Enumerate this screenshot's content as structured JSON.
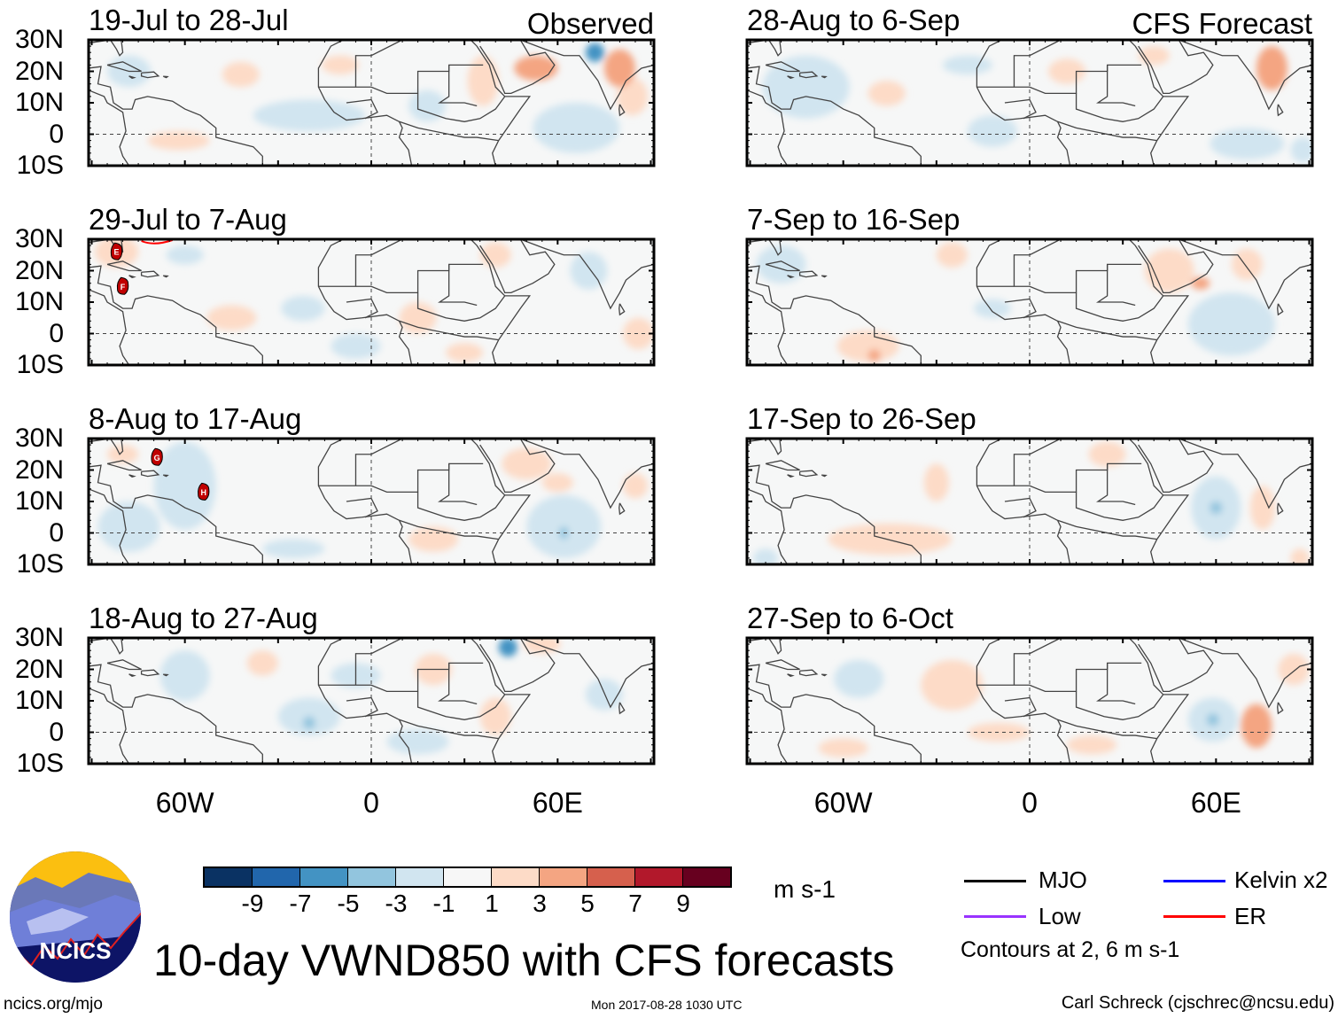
{
  "panels": [
    {
      "title": "19-Jul to 28-Jul",
      "label": "Observed",
      "col": 0,
      "row": 0,
      "features": [
        [
          53,
          21,
          7,
          4,
          5
        ],
        [
          72,
          26,
          3,
          3,
          -5
        ],
        [
          80,
          21,
          5,
          6,
          4
        ],
        [
          66,
          2,
          14,
          8,
          -2
        ],
        [
          -20,
          6,
          18,
          5,
          -2
        ],
        [
          -42,
          19,
          6,
          4,
          2
        ],
        [
          -62,
          -2,
          10,
          3,
          2
        ],
        [
          -78,
          20,
          7,
          5,
          -2
        ],
        [
          18,
          9,
          6,
          5,
          -2
        ],
        [
          36,
          17,
          5,
          8,
          2
        ],
        [
          84,
          12,
          5,
          6,
          2
        ],
        [
          -10,
          22,
          6,
          3,
          2
        ]
      ],
      "storms": []
    },
    {
      "title": "29-Jul to 7-Aug",
      "label": "",
      "col": 0,
      "row": 1,
      "features": [
        [
          -82,
          26,
          7,
          5,
          2
        ],
        [
          -45,
          5,
          8,
          4,
          2
        ],
        [
          -22,
          8,
          7,
          4,
          -2
        ],
        [
          -5,
          -4,
          8,
          4,
          -2
        ],
        [
          15,
          5,
          6,
          5,
          2
        ],
        [
          40,
          25,
          5,
          4,
          2
        ],
        [
          86,
          0,
          5,
          5,
          2
        ],
        [
          70,
          20,
          6,
          6,
          -2
        ],
        [
          30,
          -6,
          6,
          3,
          2
        ],
        [
          -60,
          25,
          6,
          3,
          -2
        ]
      ],
      "storms": [
        {
          "name": "E",
          "lon": -82,
          "lat": 26
        },
        {
          "name": "F",
          "lon": -80,
          "lat": 15
        }
      ]
    },
    {
      "title": "8-Aug to 17-Aug",
      "label": "",
      "col": 0,
      "row": 2,
      "features": [
        [
          -60,
          15,
          10,
          14,
          -2
        ],
        [
          -78,
          2,
          10,
          8,
          -2
        ],
        [
          50,
          22,
          8,
          5,
          3
        ],
        [
          60,
          16,
          5,
          3,
          3
        ],
        [
          62,
          2,
          12,
          10,
          -2
        ],
        [
          62,
          0,
          1.5,
          2,
          -4
        ],
        [
          20,
          -2,
          8,
          4,
          2
        ],
        [
          -80,
          25,
          5,
          3,
          2
        ],
        [
          -25,
          -5,
          10,
          3,
          -2
        ],
        [
          85,
          15,
          4,
          4,
          2
        ]
      ],
      "storms": [
        {
          "name": "G",
          "lon": -69,
          "lat": 24
        },
        {
          "name": "H",
          "lon": -54,
          "lat": 13
        }
      ]
    },
    {
      "title": "18-Aug to 27-Aug",
      "label": "",
      "col": 0,
      "row": 3,
      "features": [
        [
          44,
          27,
          3,
          3,
          -5
        ],
        [
          55,
          28,
          6,
          3,
          2
        ],
        [
          -20,
          5,
          10,
          6,
          -2
        ],
        [
          -20,
          3,
          2,
          2,
          -4
        ],
        [
          -60,
          18,
          8,
          8,
          -2
        ],
        [
          -5,
          18,
          8,
          4,
          -2
        ],
        [
          15,
          -3,
          10,
          4,
          -2
        ],
        [
          40,
          5,
          5,
          6,
          2
        ],
        [
          75,
          12,
          6,
          5,
          -2
        ],
        [
          -35,
          22,
          5,
          4,
          2
        ],
        [
          20,
          20,
          6,
          5,
          2
        ]
      ],
      "storms": []
    },
    {
      "title": "28-Aug to 6-Sep",
      "label": "CFS Forecast",
      "col": 1,
      "row": 0,
      "features": [
        [
          -72,
          15,
          14,
          10,
          -2
        ],
        [
          78,
          21,
          5,
          7,
          4
        ],
        [
          -12,
          1,
          8,
          5,
          -2
        ],
        [
          70,
          -3,
          12,
          5,
          -2
        ],
        [
          -46,
          13,
          6,
          4,
          2
        ],
        [
          12,
          20,
          6,
          4,
          2
        ],
        [
          -20,
          22,
          8,
          3,
          -2
        ],
        [
          40,
          25,
          5,
          3,
          2
        ],
        [
          88,
          -5,
          4,
          4,
          -2
        ]
      ],
      "storms": []
    },
    {
      "title": "7-Sep to 16-Sep",
      "label": "",
      "col": 1,
      "row": 1,
      "features": [
        [
          -80,
          22,
          8,
          6,
          -2
        ],
        [
          -52,
          -4,
          10,
          5,
          3
        ],
        [
          -50,
          -7,
          2,
          2,
          4
        ],
        [
          45,
          20,
          8,
          7,
          3
        ],
        [
          55,
          16,
          3,
          2,
          4
        ],
        [
          65,
          3,
          14,
          10,
          -2
        ],
        [
          -25,
          25,
          5,
          4,
          2
        ],
        [
          70,
          22,
          5,
          5,
          2
        ],
        [
          -12,
          8,
          6,
          3,
          -2
        ]
      ],
      "storms": []
    },
    {
      "title": "17-Sep to 26-Sep",
      "label": "",
      "col": 1,
      "row": 2,
      "features": [
        [
          -45,
          -2,
          20,
          5,
          2
        ],
        [
          60,
          8,
          8,
          10,
          -2
        ],
        [
          60,
          8,
          2,
          2,
          -4
        ],
        [
          75,
          8,
          4,
          7,
          2
        ],
        [
          -30,
          16,
          4,
          6,
          2
        ],
        [
          25,
          25,
          6,
          4,
          2
        ],
        [
          -85,
          -8,
          4,
          3,
          -2
        ],
        [
          87,
          -8,
          3,
          3,
          2
        ]
      ],
      "storms": []
    },
    {
      "title": "27-Sep to 6-Oct",
      "label": "",
      "col": 1,
      "row": 3,
      "features": [
        [
          73,
          2,
          5,
          7,
          5
        ],
        [
          59,
          4,
          8,
          7,
          -2
        ],
        [
          59,
          4,
          2,
          2,
          -4
        ],
        [
          -25,
          15,
          10,
          8,
          2
        ],
        [
          -55,
          17,
          8,
          6,
          -2
        ],
        [
          -10,
          0,
          10,
          3,
          2
        ],
        [
          -60,
          -5,
          8,
          3,
          2
        ],
        [
          85,
          20,
          5,
          5,
          2
        ],
        [
          20,
          -4,
          8,
          3,
          2
        ]
      ],
      "storms": []
    }
  ],
  "lat_labels": [
    "30N",
    "20N",
    "10N",
    "0",
    "10S"
  ],
  "lon_labels": [
    "60W",
    "0",
    "60E"
  ],
  "colorbar": {
    "colors": [
      "#0a3263",
      "#2166ac",
      "#4393c3",
      "#92c5de",
      "#d1e5f0",
      "#f7f7f7",
      "#fddbc7",
      "#f4a582",
      "#d6604d",
      "#b2182b",
      "#67001f"
    ],
    "ticks": [
      "-9",
      "-7",
      "-5",
      "-3",
      "-1",
      "1",
      "3",
      "5",
      "7",
      "9"
    ],
    "units": "m s-1"
  },
  "legend": {
    "mjo": "MJO",
    "kelvin": "Kelvin x2",
    "low": "Low",
    "er": "ER",
    "colors": {
      "mjo": "#000000",
      "kelvin": "#0000ff",
      "low": "#9933ff",
      "er": "#ff0000"
    },
    "contours": "Contours at 2, 6 m s-1"
  },
  "title": "10-day VWND850 with CFS forecasts",
  "logo": "NCICS",
  "footer": {
    "url": "ncics.org/mjo",
    "timestamp": "Mon 2017-08-28 1030 UTC",
    "author": "Carl Schreck (cjschrec@ncsu.edu)"
  }
}
